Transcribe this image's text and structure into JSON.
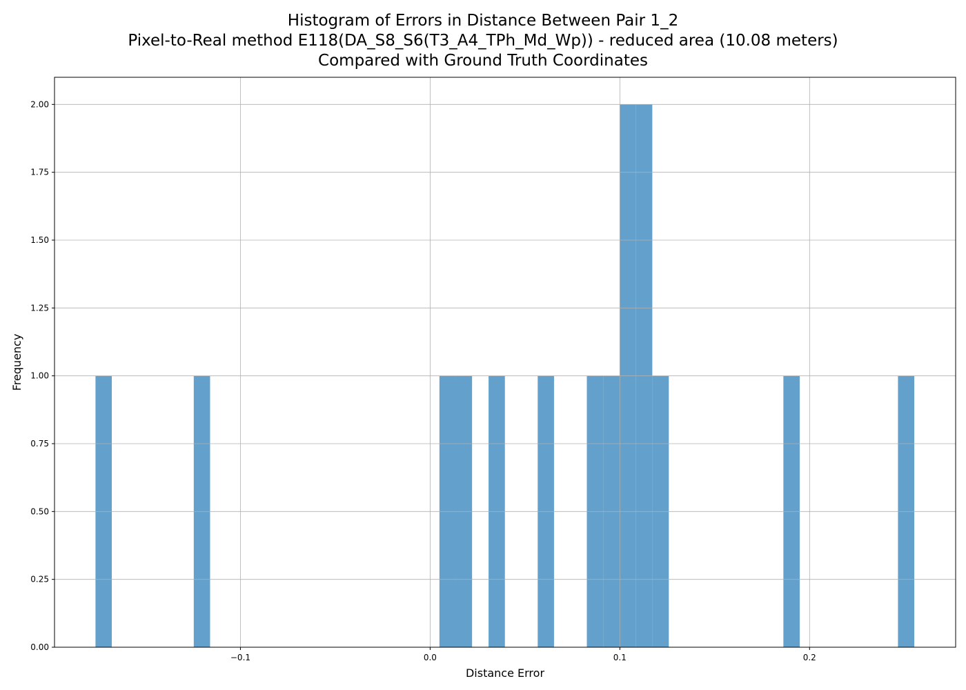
{
  "chart_data": {
    "type": "bar",
    "title_lines": [
      "Histogram of Errors in Distance Between Pair 1_2",
      "Pixel-to-Real method E118(DA_S8_S6(T3_A4_TPh_Md_Wp)) - reduced area (10.08 meters)",
      "Compared with Ground Truth Coordinates"
    ],
    "xlabel": "Distance Error",
    "ylabel": "Frequency",
    "xlim": [
      -0.198,
      0.277
    ],
    "ylim": [
      0,
      2.1
    ],
    "xticks": [
      {
        "value": -0.1,
        "label": "−0.1"
      },
      {
        "value": 0.0,
        "label": "0.0"
      },
      {
        "value": 0.1,
        "label": "0.1"
      },
      {
        "value": 0.2,
        "label": "0.2"
      }
    ],
    "yticks": [
      {
        "value": 0.0,
        "label": "0.00"
      },
      {
        "value": 0.25,
        "label": "0.25"
      },
      {
        "value": 0.5,
        "label": "0.50"
      },
      {
        "value": 0.75,
        "label": "0.75"
      },
      {
        "value": 1.0,
        "label": "1.00"
      },
      {
        "value": 1.25,
        "label": "1.25"
      },
      {
        "value": 1.5,
        "label": "1.50"
      },
      {
        "value": 1.75,
        "label": "1.75"
      },
      {
        "value": 2.0,
        "label": "2.00"
      }
    ],
    "grid": true,
    "bar_color": "#63a0cb",
    "bins": [
      {
        "x0": -0.1764,
        "x1": -0.1678,
        "count": 1
      },
      {
        "x0": -0.1246,
        "x1": -0.116,
        "count": 1
      },
      {
        "x0": 0.0049,
        "x1": 0.0135,
        "count": 1
      },
      {
        "x0": 0.0135,
        "x1": 0.0221,
        "count": 1
      },
      {
        "x0": 0.0308,
        "x1": 0.0394,
        "count": 1
      },
      {
        "x0": 0.0567,
        "x1": 0.0653,
        "count": 1
      },
      {
        "x0": 0.0826,
        "x1": 0.0912,
        "count": 1
      },
      {
        "x0": 0.0912,
        "x1": 0.0999,
        "count": 1
      },
      {
        "x0": 0.0999,
        "x1": 0.1085,
        "count": 2
      },
      {
        "x0": 0.1085,
        "x1": 0.1171,
        "count": 2
      },
      {
        "x0": 0.1171,
        "x1": 0.1258,
        "count": 1
      },
      {
        "x0": 0.1862,
        "x1": 0.1948,
        "count": 1
      },
      {
        "x0": 0.2466,
        "x1": 0.2552,
        "count": 1
      }
    ]
  }
}
